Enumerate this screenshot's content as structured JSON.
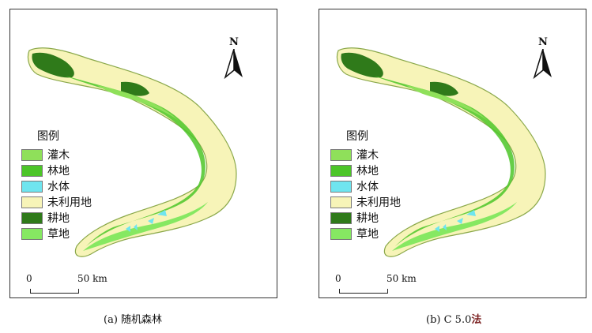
{
  "panels": [
    {
      "id": "a",
      "north": "N",
      "legend_title": "图例",
      "scale_zero": "0",
      "scale_end": "50 km",
      "caption_prefix": "(a) ",
      "caption_method": "随机森林"
    },
    {
      "id": "b",
      "north": "N",
      "legend_title": "图例",
      "scale_zero": "0",
      "scale_end": "50 km",
      "caption_prefix": "(b) C 5.0",
      "caption_method": "法"
    }
  ],
  "legend_items": [
    {
      "label": "灌木",
      "color": "#8fe05a"
    },
    {
      "label": "林地",
      "color": "#4cc528"
    },
    {
      "label": "水体",
      "color": "#6fe5ef"
    },
    {
      "label": "未利用地",
      "color": "#f7f4b8"
    },
    {
      "label": "耕地",
      "color": "#2f7a1a"
    },
    {
      "label": "草地",
      "color": "#86e862"
    }
  ],
  "colors": {
    "unused_land": "#f7f4b8",
    "forest": "#4cc528",
    "shrub": "#8fe05a",
    "cropland": "#2f7a1a",
    "water": "#6fe5ef",
    "grass": "#86e862",
    "outline": "#8aa84a"
  }
}
